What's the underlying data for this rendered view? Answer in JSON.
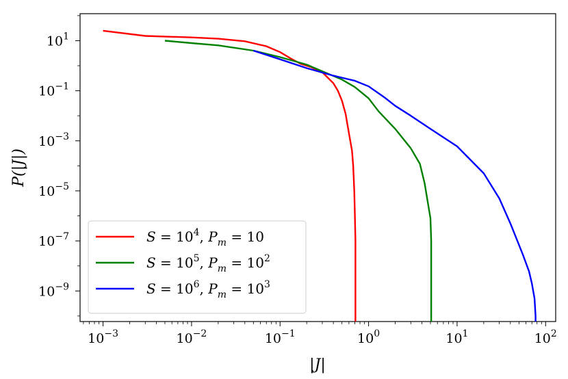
{
  "chart_data": {
    "type": "line",
    "title": "",
    "xlabel": "|J|",
    "ylabel": "P(|J|)",
    "xscale": "log",
    "yscale": "log",
    "xlim": [
      0.00055,
      130
    ],
    "ylim": [
      6e-11,
      120
    ],
    "grid": false,
    "legend_position": "lower-left",
    "x_ticks": [
      {
        "value": 0.001,
        "base": "10",
        "exp": "−3"
      },
      {
        "value": 0.01,
        "base": "10",
        "exp": "−2"
      },
      {
        "value": 0.1,
        "base": "10",
        "exp": "−1"
      },
      {
        "value": 1,
        "base": "10",
        "exp": "0"
      },
      {
        "value": 10,
        "base": "10",
        "exp": "1"
      },
      {
        "value": 100,
        "base": "10",
        "exp": "2"
      }
    ],
    "y_ticks": [
      {
        "value": 10,
        "base": "10",
        "exp": "1"
      },
      {
        "value": 0.1,
        "base": "10",
        "exp": "−1"
      },
      {
        "value": 0.001,
        "base": "10",
        "exp": "−3"
      },
      {
        "value": 1e-05,
        "base": "10",
        "exp": "−5"
      },
      {
        "value": 1e-07,
        "base": "10",
        "exp": "−7"
      },
      {
        "value": 1e-09,
        "base": "10",
        "exp": "−9"
      }
    ],
    "series": [
      {
        "name": "S = 10^4, P_m = 10",
        "legend": {
          "s_exp": "4",
          "p_val": "10",
          "p_exp": ""
        },
        "color": "#ff0000",
        "points": [
          [
            0.001,
            25
          ],
          [
            0.003,
            15.5
          ],
          [
            0.01,
            13.5
          ],
          [
            0.02,
            12
          ],
          [
            0.04,
            9.5
          ],
          [
            0.07,
            6
          ],
          [
            0.1,
            3.5
          ],
          [
            0.13,
            2
          ],
          [
            0.17,
            1.2
          ],
          [
            0.22,
            0.9
          ],
          [
            0.3,
            0.55
          ],
          [
            0.4,
            0.2
          ],
          [
            0.45,
            0.1
          ],
          [
            0.5,
            0.04
          ],
          [
            0.55,
            0.012
          ],
          [
            0.6,
            0.002
          ],
          [
            0.65,
            0.0004
          ],
          [
            0.67,
            0.0001
          ],
          [
            0.69,
            1e-05
          ],
          [
            0.7,
            1e-06
          ],
          [
            0.71,
            1e-07
          ],
          [
            0.71,
            1e-09
          ],
          [
            0.71,
            6e-11
          ]
        ]
      },
      {
        "name": "S = 10^5, P_m = 10^2",
        "legend": {
          "s_exp": "5",
          "p_val": "10",
          "p_exp": "2"
        },
        "color": "#008000",
        "points": [
          [
            0.005,
            10
          ],
          [
            0.01,
            8
          ],
          [
            0.02,
            6.5
          ],
          [
            0.05,
            4
          ],
          [
            0.1,
            2.2
          ],
          [
            0.2,
            1.1
          ],
          [
            0.3,
            0.6
          ],
          [
            0.5,
            0.28
          ],
          [
            0.7,
            0.14
          ],
          [
            1,
            0.05
          ],
          [
            1.3,
            0.015
          ],
          [
            2,
            0.003
          ],
          [
            3,
            0.0005
          ],
          [
            3.8,
            0.00012
          ],
          [
            4.3,
            2e-05
          ],
          [
            4.7,
            3e-06
          ],
          [
            5,
            8e-07
          ],
          [
            5.1,
            1e-07
          ],
          [
            5.1,
            1e-09
          ],
          [
            5.1,
            6e-11
          ]
        ]
      },
      {
        "name": "S = 10^6, P_m = 10^3",
        "legend": {
          "s_exp": "6",
          "p_val": "10",
          "p_exp": "3"
        },
        "color": "#0000ff",
        "points": [
          [
            0.05,
            4
          ],
          [
            0.1,
            1.8
          ],
          [
            0.2,
            0.8
          ],
          [
            0.4,
            0.4
          ],
          [
            0.7,
            0.25
          ],
          [
            1,
            0.15
          ],
          [
            1.5,
            0.055
          ],
          [
            2,
            0.025
          ],
          [
            3,
            0.01
          ],
          [
            5,
            0.003
          ],
          [
            10,
            0.0006
          ],
          [
            20,
            5e-05
          ],
          [
            30,
            5e-06
          ],
          [
            40,
            5e-07
          ],
          [
            55,
            3e-08
          ],
          [
            65,
            6e-09
          ],
          [
            70,
            2e-09
          ],
          [
            75,
            5e-10
          ],
          [
            77,
            1e-10
          ],
          [
            77,
            6e-11
          ]
        ]
      }
    ]
  }
}
